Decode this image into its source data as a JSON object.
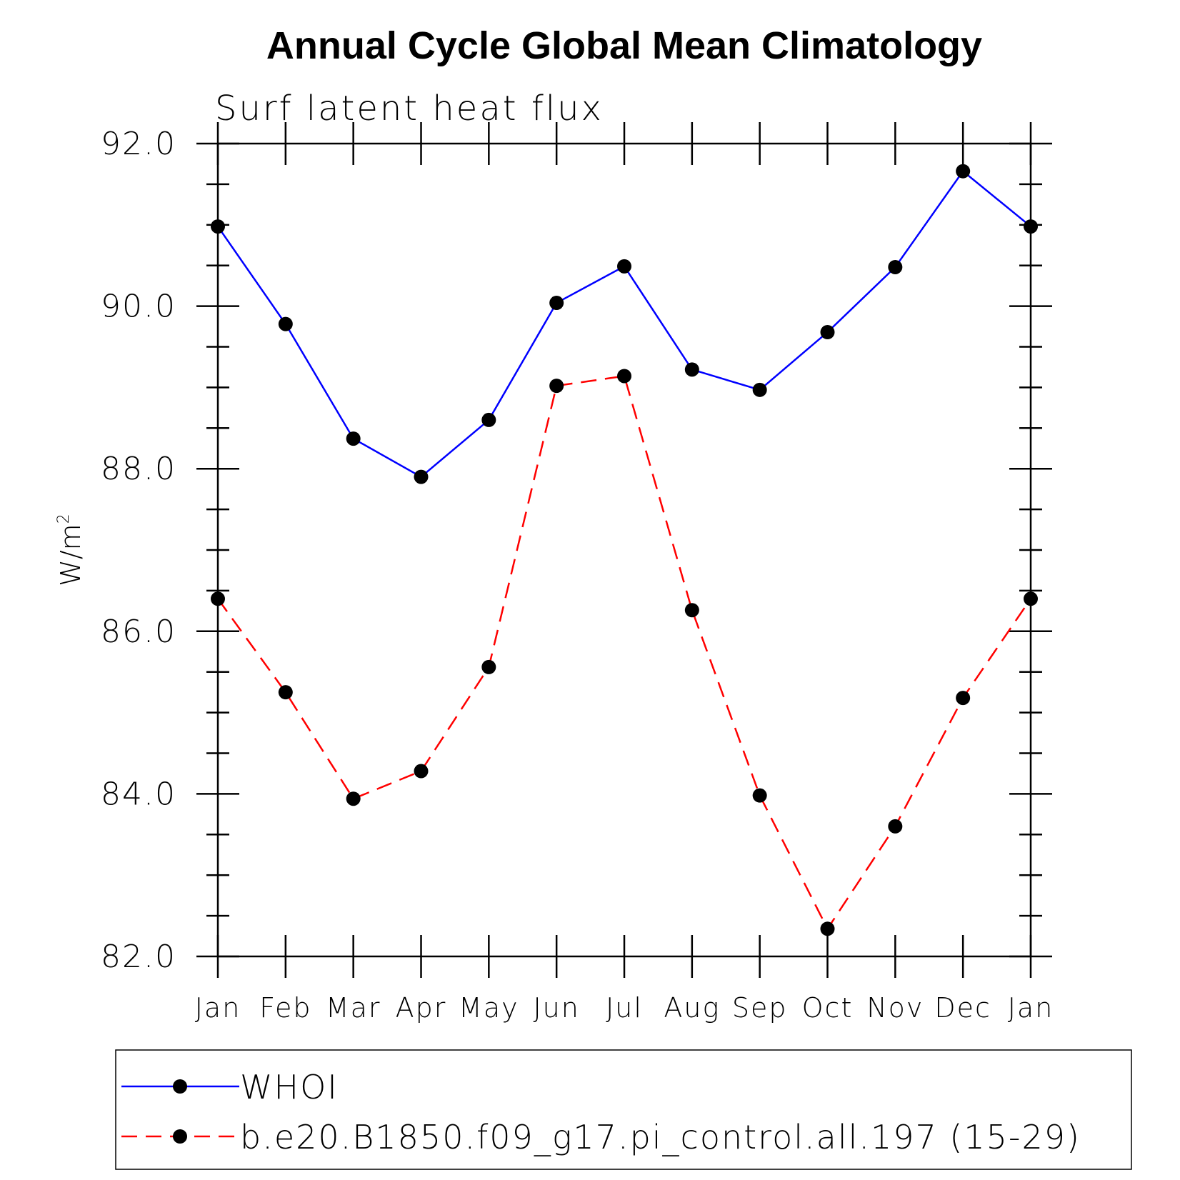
{
  "chart_data": {
    "type": "line",
    "title": "Annual Cycle Global Mean Climatology",
    "subtitle": "Surf latent heat flux",
    "ylabel": "W/m",
    "ylabel_superscript": "2",
    "xlabel": "",
    "categories": [
      "Jan",
      "Feb",
      "Mar",
      "Apr",
      "May",
      "Jun",
      "Jul",
      "Aug",
      "Sep",
      "Oct",
      "Nov",
      "Dec",
      "Jan"
    ],
    "ylim": [
      82.0,
      92.0
    ],
    "yticks": [
      82.0,
      84.0,
      86.0,
      88.0,
      90.0,
      92.0
    ],
    "ytick_labels": [
      "82.0",
      "84.0",
      "86.0",
      "88.0",
      "90.0",
      "92.0"
    ],
    "series": [
      {
        "name": "WHOI",
        "color": "#0000ff",
        "dash": "solid",
        "marker": "filled-circle",
        "marker_color": "#000000",
        "values": [
          90.98,
          89.78,
          88.37,
          87.9,
          88.6,
          90.04,
          90.49,
          89.22,
          88.97,
          89.68,
          90.48,
          91.66,
          90.98
        ]
      },
      {
        "name": "b.e20.B1850.f09_g17.pi_control.all.197 (15-29)",
        "color": "#ff0000",
        "dash": "dashed",
        "marker": "filled-circle",
        "marker_color": "#000000",
        "values": [
          86.4,
          85.25,
          83.94,
          84.28,
          85.56,
          89.02,
          89.14,
          86.26,
          83.98,
          82.34,
          83.6,
          85.18,
          86.4
        ]
      }
    ],
    "grid": false,
    "legend_position": "bottom"
  }
}
